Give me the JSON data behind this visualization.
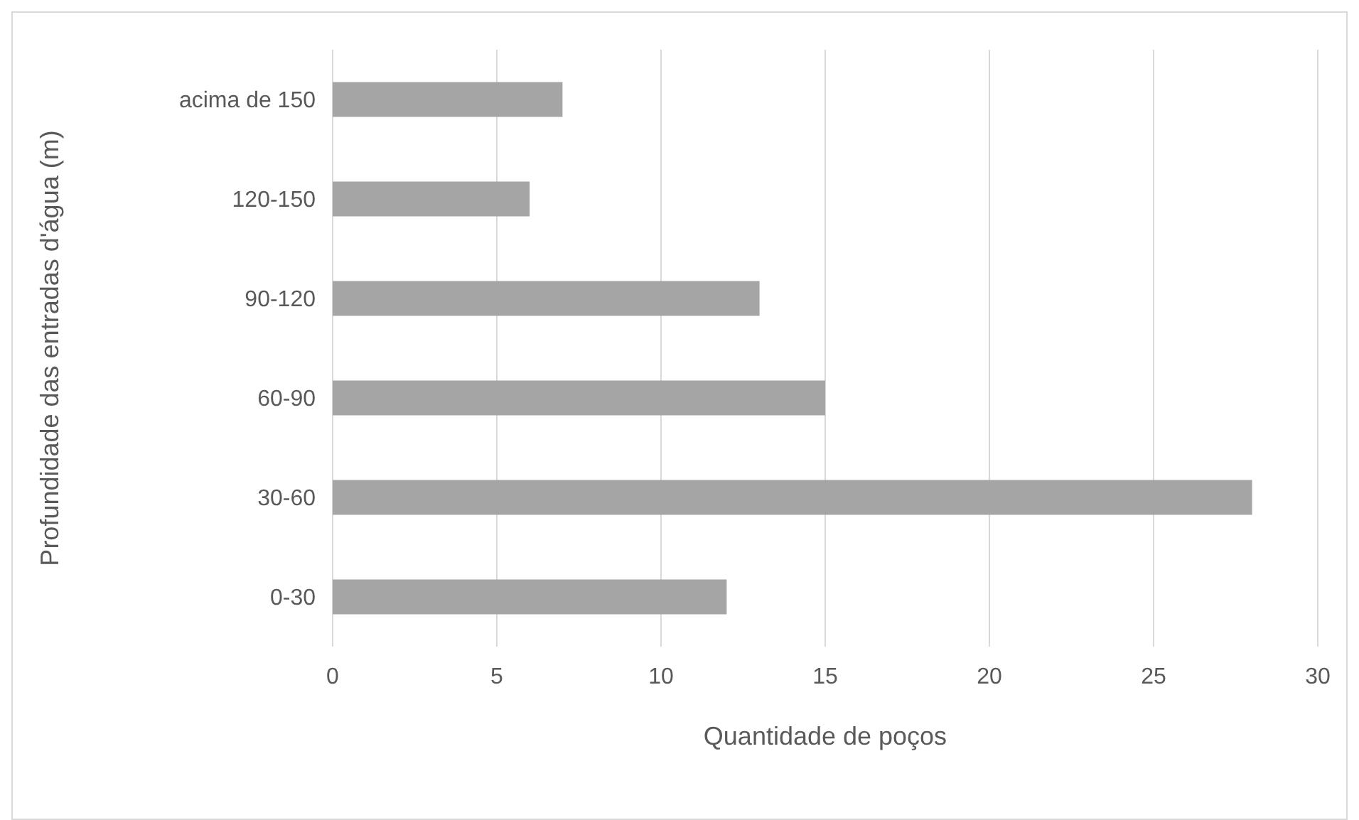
{
  "chart_data": {
    "type": "bar",
    "orientation": "horizontal",
    "xlabel": "Quantidade de poços",
    "ylabel": "Profundidade das entradas d'água (m)",
    "categories": [
      "acima de 150",
      "120-150",
      "90-120",
      "60-90",
      "30-60",
      "0-30"
    ],
    "values": [
      7,
      6,
      13,
      15,
      28,
      12
    ],
    "color": "#a5a5a5",
    "xlim": [
      0,
      30
    ],
    "xticks": [
      0,
      5,
      10,
      15,
      20,
      25,
      30
    ],
    "grid": "x"
  }
}
